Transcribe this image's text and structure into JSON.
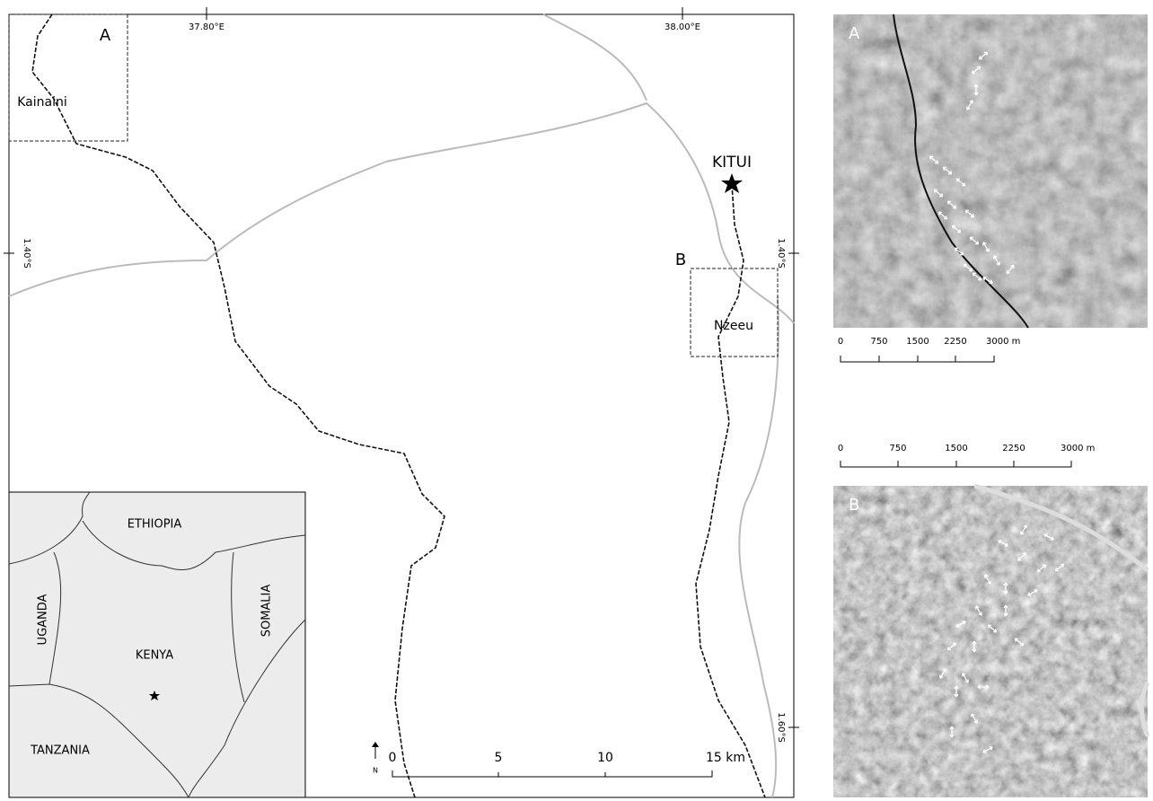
{
  "main_map": {
    "longitude_labels": [
      "37.80°E",
      "38.00°E"
    ],
    "latitude_labels": [
      "1.40°S",
      "1.40°S",
      "1.60°S"
    ],
    "inset_boxes": [
      "A",
      "B"
    ],
    "places": [
      "Kainaini",
      "KITUI",
      "Nzeeu"
    ],
    "scale_bar": [
      "0",
      "5",
      "10",
      "15 km"
    ],
    "north": "N"
  },
  "country_inset": {
    "countries": [
      "ETHIOPIA",
      "UGANDA",
      "KENYA",
      "SOMALIA",
      "TANZANIA"
    ]
  },
  "panel_a": {
    "label": "A",
    "scale_bar": [
      "0",
      "750",
      "1500",
      "2250",
      "3000 m"
    ]
  },
  "panel_b": {
    "label": "B",
    "scale_bar": [
      "0",
      "750",
      "1500",
      "2250",
      "3000 m"
    ]
  }
}
